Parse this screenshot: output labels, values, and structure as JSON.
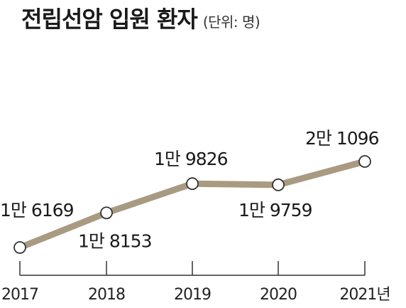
{
  "chart_data": {
    "type": "line",
    "title": "전립선암 입원 환자",
    "unit": "(단위: 명)",
    "categories": [
      "2017",
      "2018",
      "2019",
      "2020",
      "2021년"
    ],
    "values": [
      16169,
      18153,
      19826,
      19759,
      21096
    ],
    "data_labels": [
      "1만 6169",
      "1만 8153",
      "1만 9826",
      "1만 9759",
      "2만 1096"
    ],
    "colors": {
      "line": "#a89b82",
      "marker_fill": "#ffffff",
      "marker_stroke": "#333333",
      "axis": "#333333"
    },
    "grid": false,
    "legend": "none"
  }
}
